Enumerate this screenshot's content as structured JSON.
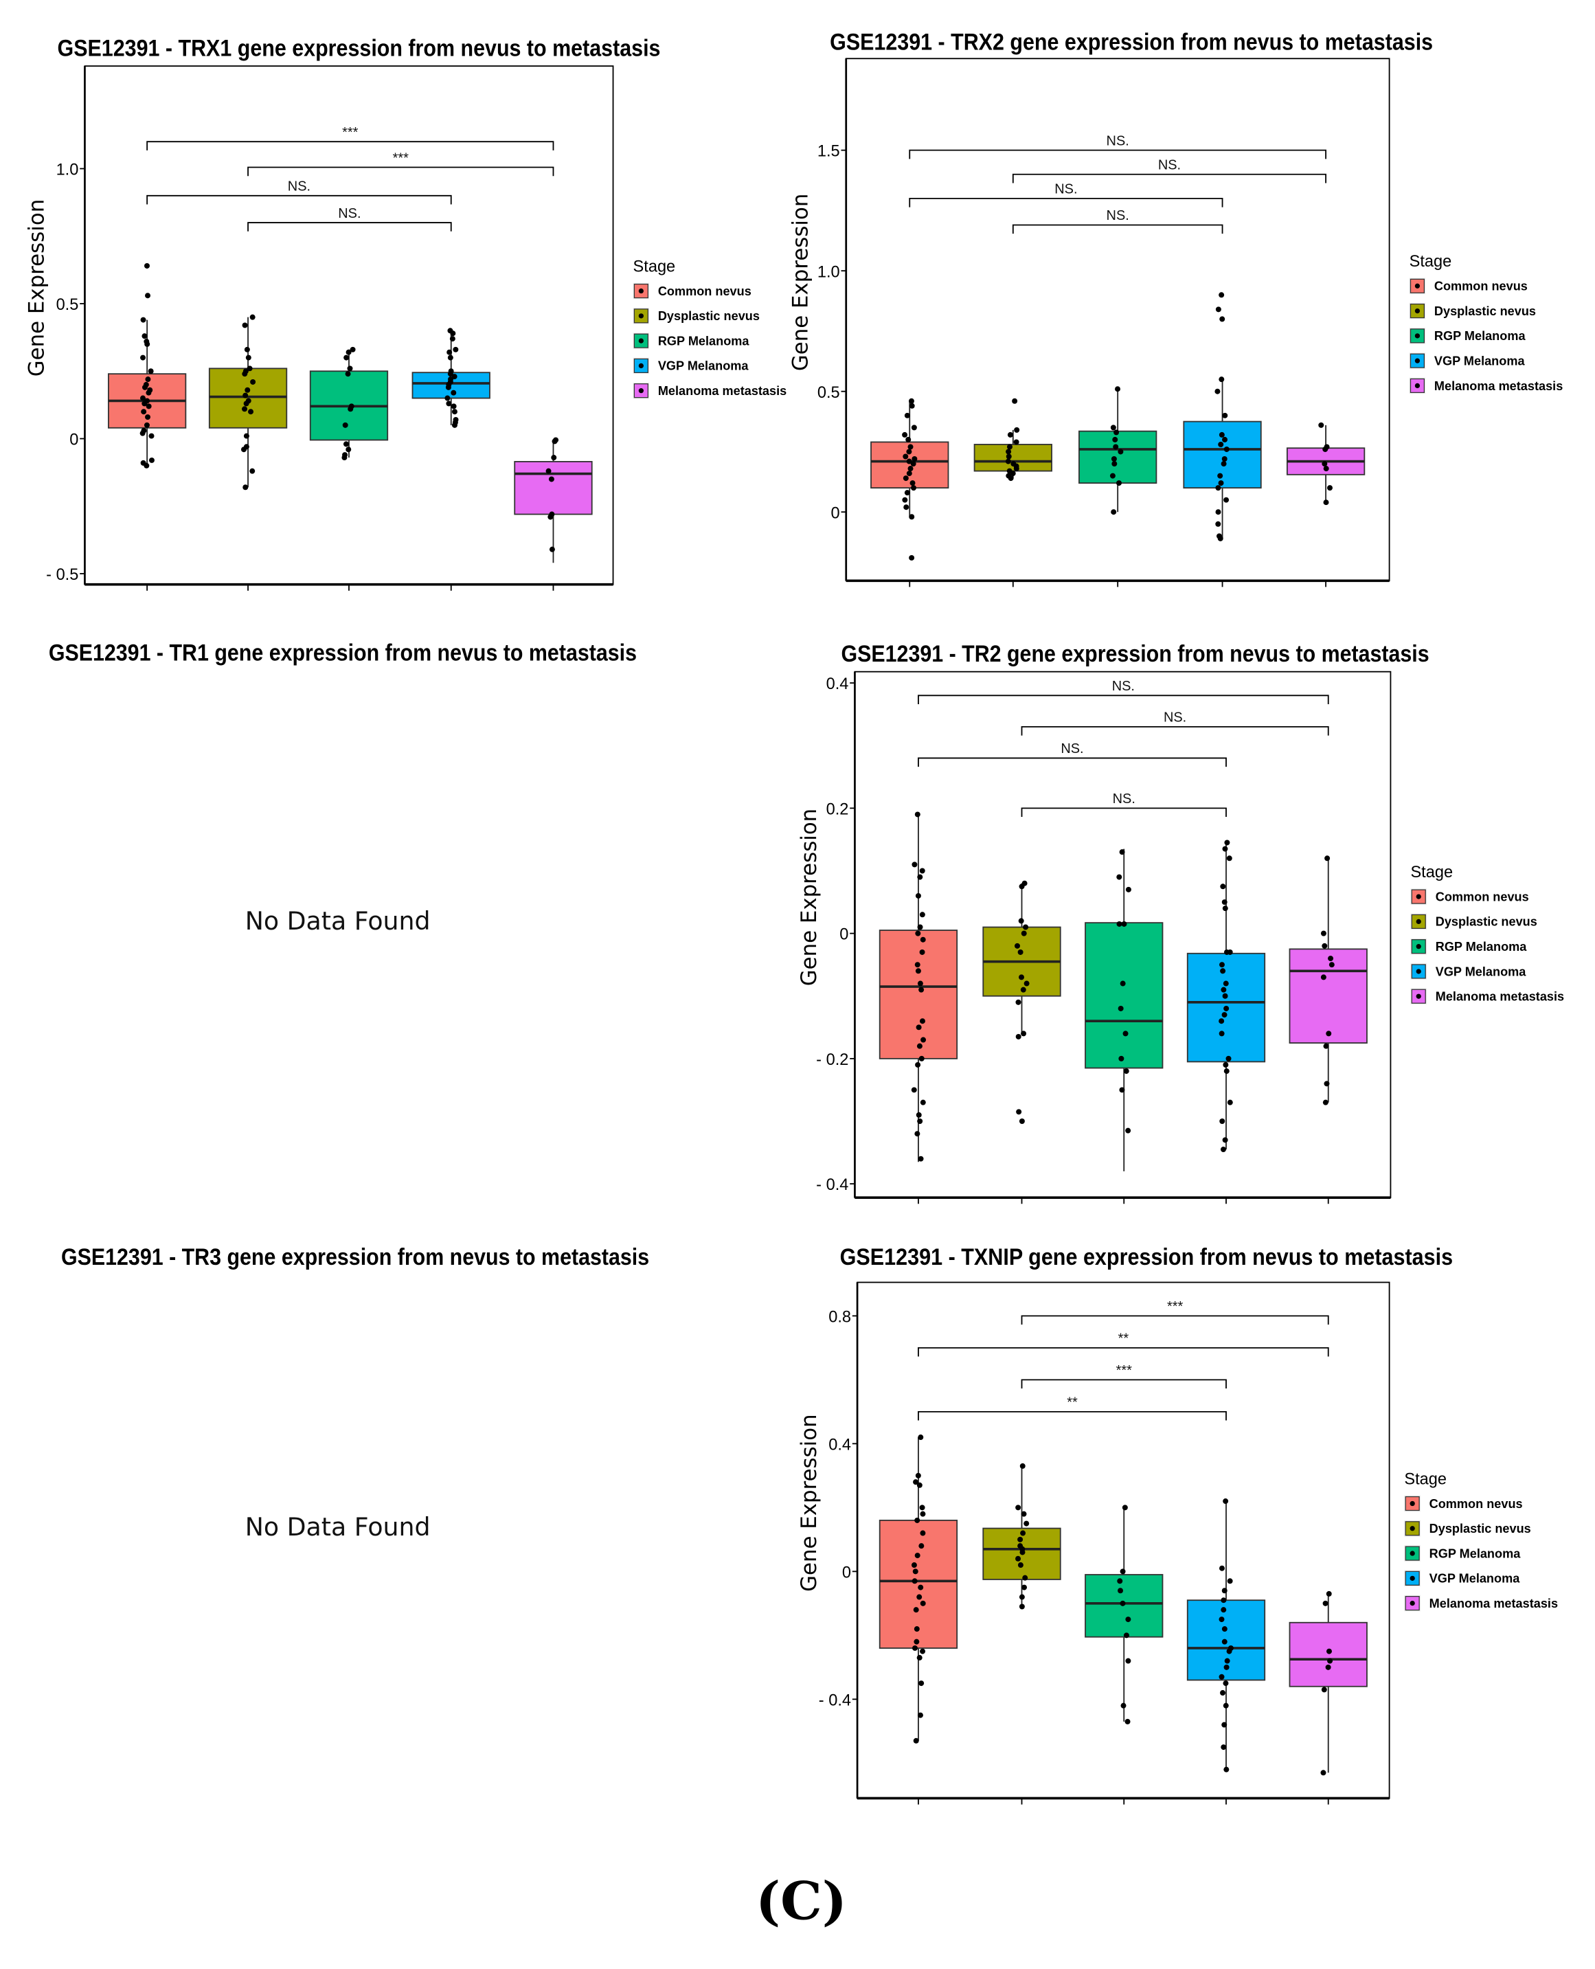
{
  "categories": [
    "Common nevus",
    "Dysplastic nevus",
    "RGP Melanoma",
    "VGP Melanoma",
    "Melanoma metastasis"
  ],
  "colors": [
    "#F8766D",
    "#A3A500",
    "#00BF7D",
    "#00B0F6",
    "#E76BF3"
  ],
  "legend_title": "Stage",
  "panel_label": "(C)",
  "no_data_text": "No Data Found",
  "chart_data": [
    {
      "type": "box",
      "title": "GSE12391 - TRX1 gene expression from nevus to metastasis",
      "ylabel": "Gene Expression",
      "yticks": [
        {
          "v": 1.0,
          "label": "1.0"
        },
        {
          "v": 0.5,
          "label": "0.5"
        },
        {
          "v": 0,
          "label": "0"
        },
        {
          "v": -0.5,
          "label": "- 0.5"
        }
      ],
      "ylim": [
        -0.54,
        1.38
      ],
      "boxes": [
        {
          "q1": 0.04,
          "median": 0.14,
          "q3": 0.24,
          "low": -0.1,
          "high": 0.44
        },
        {
          "q1": 0.04,
          "median": 0.155,
          "q3": 0.26,
          "low": -0.18,
          "high": 0.45
        },
        {
          "q1": -0.005,
          "median": 0.12,
          "q3": 0.25,
          "low": -0.07,
          "high": 0.33
        },
        {
          "q1": 0.15,
          "median": 0.205,
          "q3": 0.245,
          "low": 0.05,
          "high": 0.4
        },
        {
          "q1": -0.28,
          "median": -0.13,
          "q3": -0.085,
          "low": -0.46,
          "high": -0.005
        }
      ],
      "points": [
        [
          0.64,
          0.53,
          0.44,
          0.38,
          0.36,
          0.35,
          0.3,
          0.25,
          0.22,
          0.2,
          0.19,
          0.18,
          0.17,
          0.15,
          0.14,
          0.13,
          0.12,
          0.1,
          0.08,
          0.05,
          0.03,
          0.02,
          0.01,
          -0.08,
          -0.09,
          -0.1
        ],
        [
          0.45,
          0.42,
          0.33,
          0.3,
          0.26,
          0.25,
          0.24,
          0.21,
          0.18,
          0.16,
          0.14,
          0.13,
          0.11,
          0.1,
          0.01,
          -0.03,
          -0.04,
          -0.12,
          -0.18
        ],
        [
          0.33,
          0.32,
          0.3,
          0.26,
          0.24,
          0.12,
          0.11,
          0.05,
          -0.02,
          -0.04,
          -0.06,
          -0.07
        ],
        [
          0.4,
          0.39,
          0.37,
          0.33,
          0.32,
          0.3,
          0.25,
          0.24,
          0.23,
          0.22,
          0.21,
          0.2,
          0.19,
          0.17,
          0.15,
          0.13,
          0.12,
          0.1,
          0.07,
          0.06,
          0.05
        ],
        [
          -0.005,
          -0.01,
          -0.07,
          -0.12,
          -0.15,
          -0.28,
          -0.29,
          -0.41
        ]
      ],
      "comparisons": [
        {
          "from": 1,
          "to": 5,
          "y": 1.1,
          "label": "***"
        },
        {
          "from": 2,
          "to": 5,
          "y": 1.005,
          "label": "***"
        },
        {
          "from": 1,
          "to": 4,
          "y": 0.9,
          "label": "NS."
        },
        {
          "from": 2,
          "to": 4,
          "y": 0.8,
          "label": "NS."
        }
      ]
    },
    {
      "type": "box",
      "title": "GSE12391 - TRX2 gene expression from nevus to metastasis",
      "ylabel": "Gene Expression",
      "yticks": [
        {
          "v": 1.5,
          "label": "1.5"
        },
        {
          "v": 1.0,
          "label": "1.0"
        },
        {
          "v": 0.5,
          "label": "0.5"
        },
        {
          "v": 0,
          "label": "0"
        }
      ],
      "ylim": [
        -0.285,
        1.88
      ],
      "boxes": [
        {
          "q1": 0.1,
          "median": 0.21,
          "q3": 0.29,
          "low": -0.02,
          "high": 0.46
        },
        {
          "q1": 0.17,
          "median": 0.21,
          "q3": 0.28,
          "low": 0.14,
          "high": 0.34
        },
        {
          "q1": 0.12,
          "median": 0.26,
          "q3": 0.335,
          "low": 0.0,
          "high": 0.51
        },
        {
          "q1": 0.1,
          "median": 0.26,
          "q3": 0.375,
          "low": -0.11,
          "high": 0.55
        },
        {
          "q1": 0.155,
          "median": 0.21,
          "q3": 0.265,
          "low": 0.04,
          "high": 0.36
        }
      ],
      "points": [
        [
          0.46,
          0.44,
          0.4,
          0.35,
          0.32,
          0.3,
          0.27,
          0.25,
          0.23,
          0.22,
          0.21,
          0.2,
          0.18,
          0.16,
          0.14,
          0.12,
          0.1,
          0.08,
          0.05,
          0.02,
          -0.02,
          -0.19
        ],
        [
          0.46,
          0.34,
          0.32,
          0.29,
          0.27,
          0.25,
          0.23,
          0.21,
          0.2,
          0.19,
          0.18,
          0.17,
          0.16,
          0.15,
          0.14
        ],
        [
          0.51,
          0.35,
          0.33,
          0.3,
          0.27,
          0.25,
          0.22,
          0.2,
          0.15,
          0.12,
          0.0
        ],
        [
          0.9,
          0.84,
          0.8,
          0.55,
          0.5,
          0.4,
          0.32,
          0.3,
          0.28,
          0.26,
          0.22,
          0.2,
          0.15,
          0.12,
          0.1,
          0.05,
          0.0,
          -0.05,
          -0.1,
          -0.11
        ],
        [
          0.36,
          0.27,
          0.26,
          0.2,
          0.18,
          0.1,
          0.04
        ]
      ],
      "comparisons": [
        {
          "from": 1,
          "to": 5,
          "y": 1.5,
          "label": "NS."
        },
        {
          "from": 2,
          "to": 5,
          "y": 1.4,
          "label": "NS."
        },
        {
          "from": 1,
          "to": 4,
          "y": 1.3,
          "label": "NS."
        },
        {
          "from": 2,
          "to": 4,
          "y": 1.19,
          "label": "NS."
        }
      ]
    },
    {
      "type": "empty",
      "title": "GSE12391 - TR1 gene expression from nevus to metastasis"
    },
    {
      "type": "box",
      "title": "GSE12391 - TR2 gene expression from nevus to metastasis",
      "ylabel": "Gene Expression",
      "yticks": [
        {
          "v": 0.4,
          "label": "0.4"
        },
        {
          "v": 0.2,
          "label": "0.2"
        },
        {
          "v": 0,
          "label": "0"
        },
        {
          "v": -0.2,
          "label": "- 0.2"
        },
        {
          "v": -0.4,
          "label": "- 0.4"
        }
      ],
      "ylim": [
        -0.422,
        0.418
      ],
      "boxes": [
        {
          "q1": -0.2,
          "median": -0.085,
          "q3": 0.005,
          "low": -0.365,
          "high": 0.19
        },
        {
          "q1": -0.1,
          "median": -0.045,
          "q3": 0.01,
          "low": -0.16,
          "high": 0.08
        },
        {
          "q1": -0.215,
          "median": -0.14,
          "q3": 0.017,
          "low": -0.38,
          "high": 0.135
        },
        {
          "q1": -0.205,
          "median": -0.11,
          "q3": -0.032,
          "low": -0.345,
          "high": 0.145
        },
        {
          "q1": -0.175,
          "median": -0.06,
          "q3": -0.025,
          "low": -0.27,
          "high": 0.12
        }
      ],
      "points": [
        [
          0.19,
          0.11,
          0.1,
          0.09,
          0.06,
          0.03,
          0.01,
          0.0,
          -0.01,
          -0.03,
          -0.05,
          -0.06,
          -0.08,
          -0.09,
          -0.14,
          -0.15,
          -0.17,
          -0.18,
          -0.2,
          -0.21,
          -0.25,
          -0.27,
          -0.29,
          -0.3,
          -0.32,
          -0.36
        ],
        [
          0.08,
          0.075,
          0.02,
          0.01,
          0.0,
          -0.02,
          -0.03,
          -0.07,
          -0.08,
          -0.09,
          -0.11,
          -0.16,
          -0.165,
          -0.285,
          -0.3
        ],
        [
          0.13,
          0.09,
          0.07,
          0.015,
          0.015,
          -0.08,
          -0.12,
          -0.16,
          -0.2,
          -0.22,
          -0.25,
          -0.315
        ],
        [
          0.145,
          0.135,
          0.12,
          0.075,
          0.05,
          0.04,
          -0.03,
          -0.03,
          -0.05,
          -0.06,
          -0.08,
          -0.09,
          -0.1,
          -0.12,
          -0.13,
          -0.14,
          -0.16,
          -0.2,
          -0.21,
          -0.22,
          -0.27,
          -0.3,
          -0.33,
          -0.345
        ],
        [
          0.12,
          0.0,
          -0.02,
          -0.04,
          -0.05,
          -0.07,
          -0.16,
          -0.18,
          -0.24,
          -0.27
        ]
      ],
      "comparisons": [
        {
          "from": 1,
          "to": 5,
          "y": 0.38,
          "label": "NS."
        },
        {
          "from": 2,
          "to": 5,
          "y": 0.33,
          "label": "NS."
        },
        {
          "from": 1,
          "to": 4,
          "y": 0.28,
          "label": "NS."
        },
        {
          "from": 2,
          "to": 4,
          "y": 0.2,
          "label": "NS."
        }
      ]
    },
    {
      "type": "empty",
      "title": "GSE12391 - TR3 gene expression from nevus to metastasis"
    },
    {
      "type": "box",
      "title": "GSE12391 - TXNIP gene expression from nevus to metastasis",
      "ylabel": "Gene Expression",
      "yticks": [
        {
          "v": 0.8,
          "label": "0.8"
        },
        {
          "v": 0.4,
          "label": "0.4"
        },
        {
          "v": 0,
          "label": "0"
        },
        {
          "v": -0.4,
          "label": "- 0.4"
        }
      ],
      "ylim": [
        -0.71,
        0.905
      ],
      "boxes": [
        {
          "q1": -0.24,
          "median": -0.03,
          "q3": 0.16,
          "low": -0.53,
          "high": 0.42
        },
        {
          "q1": -0.025,
          "median": 0.07,
          "q3": 0.135,
          "low": -0.11,
          "high": 0.33
        },
        {
          "q1": -0.205,
          "median": -0.1,
          "q3": -0.01,
          "low": -0.47,
          "high": 0.2
        },
        {
          "q1": -0.34,
          "median": -0.24,
          "q3": -0.09,
          "low": -0.62,
          "high": 0.22
        },
        {
          "q1": -0.36,
          "median": -0.275,
          "q3": -0.16,
          "low": -0.63,
          "high": -0.07
        }
      ],
      "points": [
        [
          0.42,
          0.3,
          0.28,
          0.27,
          0.2,
          0.18,
          0.16,
          0.12,
          0.08,
          0.05,
          0.02,
          0.0,
          -0.03,
          -0.05,
          -0.08,
          -0.1,
          -0.12,
          -0.18,
          -0.22,
          -0.24,
          -0.25,
          -0.27,
          -0.35,
          -0.45,
          -0.53
        ],
        [
          0.33,
          0.2,
          0.18,
          0.15,
          0.12,
          0.1,
          0.08,
          0.07,
          0.06,
          0.04,
          0.02,
          -0.02,
          -0.05,
          -0.08,
          -0.11
        ],
        [
          0.2,
          0.0,
          -0.03,
          -0.06,
          -0.1,
          -0.15,
          -0.2,
          -0.28,
          -0.42,
          -0.47
        ],
        [
          0.22,
          0.01,
          -0.03,
          -0.06,
          -0.09,
          -0.12,
          -0.15,
          -0.18,
          -0.22,
          -0.24,
          -0.25,
          -0.28,
          -0.3,
          -0.33,
          -0.35,
          -0.38,
          -0.42,
          -0.48,
          -0.55,
          -0.62
        ],
        [
          -0.07,
          -0.1,
          -0.25,
          -0.28,
          -0.3,
          -0.37,
          -0.63
        ]
      ],
      "comparisons": [
        {
          "from": 2,
          "to": 5,
          "y": 0.8,
          "label": "***"
        },
        {
          "from": 1,
          "to": 5,
          "y": 0.7,
          "label": "**"
        },
        {
          "from": 2,
          "to": 4,
          "y": 0.6,
          "label": "***"
        },
        {
          "from": 1,
          "to": 4,
          "y": 0.5,
          "label": "**"
        }
      ]
    }
  ]
}
